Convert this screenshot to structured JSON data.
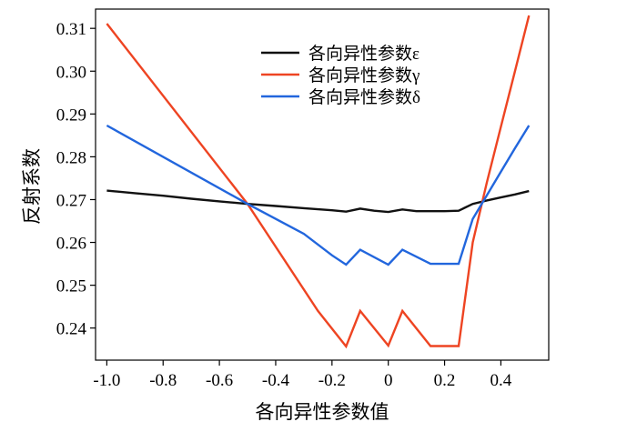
{
  "chart_data": {
    "type": "line",
    "title": "",
    "xlabel": "各向异性参数值",
    "ylabel": "反射系数",
    "xlim": [
      -1.04,
      0.57
    ],
    "ylim": [
      0.2325,
      0.3145
    ],
    "xticks": [
      -1.0,
      -0.8,
      -0.6,
      -0.4,
      -0.2,
      0,
      0.2,
      0.4
    ],
    "xtick_labels": [
      "-1.0",
      "-0.8",
      "-0.6",
      "-0.4",
      "-0.2",
      "0",
      "0.2",
      "0.4"
    ],
    "yticks": [
      0.24,
      0.25,
      0.26,
      0.27,
      0.28,
      0.29,
      0.3,
      0.31
    ],
    "ytick_labels": [
      "0.24",
      "0.25",
      "0.26",
      "0.27",
      "0.28",
      "0.29",
      "0.30",
      "0.31"
    ],
    "grid": false,
    "legend_position": "top-center",
    "series": [
      {
        "name": "各向异性参数ε",
        "color": "#111111",
        "x": [
          -1.0,
          -0.9,
          -0.8,
          -0.7,
          -0.6,
          -0.5,
          -0.4,
          -0.3,
          -0.2,
          -0.15,
          -0.1,
          -0.05,
          0.0,
          0.05,
          0.1,
          0.15,
          0.2,
          0.25,
          0.3,
          0.35,
          0.4,
          0.45,
          0.5
        ],
        "y": [
          0.2721,
          0.2715,
          0.2709,
          0.2702,
          0.2696,
          0.269,
          0.2685,
          0.268,
          0.2675,
          0.2672,
          0.2679,
          0.2674,
          0.2671,
          0.2677,
          0.2673,
          0.2673,
          0.2673,
          0.2674,
          0.269,
          0.2698,
          0.2705,
          0.2712,
          0.272
        ]
      },
      {
        "name": "各向异性参数γ",
        "color": "#ee4422",
        "x": [
          -1.0,
          -0.5,
          -0.25,
          -0.15,
          -0.1,
          0.0,
          0.05,
          0.15,
          0.2,
          0.25,
          0.3,
          0.35,
          0.4,
          0.45,
          0.5
        ],
        "y": [
          0.3111,
          0.269,
          0.244,
          0.2357,
          0.244,
          0.2359,
          0.244,
          0.2358,
          0.2358,
          0.2358,
          0.26,
          0.274,
          0.287,
          0.3,
          0.313
        ]
      },
      {
        "name": "各向异性参数δ",
        "color": "#2266dd",
        "x": [
          -1.0,
          -0.5,
          -0.3,
          -0.2,
          -0.15,
          -0.1,
          0.0,
          0.05,
          0.15,
          0.2,
          0.25,
          0.3,
          0.35,
          0.4,
          0.45,
          0.5
        ],
        "y": [
          0.2873,
          0.269,
          0.262,
          0.257,
          0.2548,
          0.2583,
          0.2548,
          0.2583,
          0.255,
          0.255,
          0.255,
          0.2655,
          0.271,
          0.2765,
          0.282,
          0.2873
        ]
      }
    ]
  }
}
